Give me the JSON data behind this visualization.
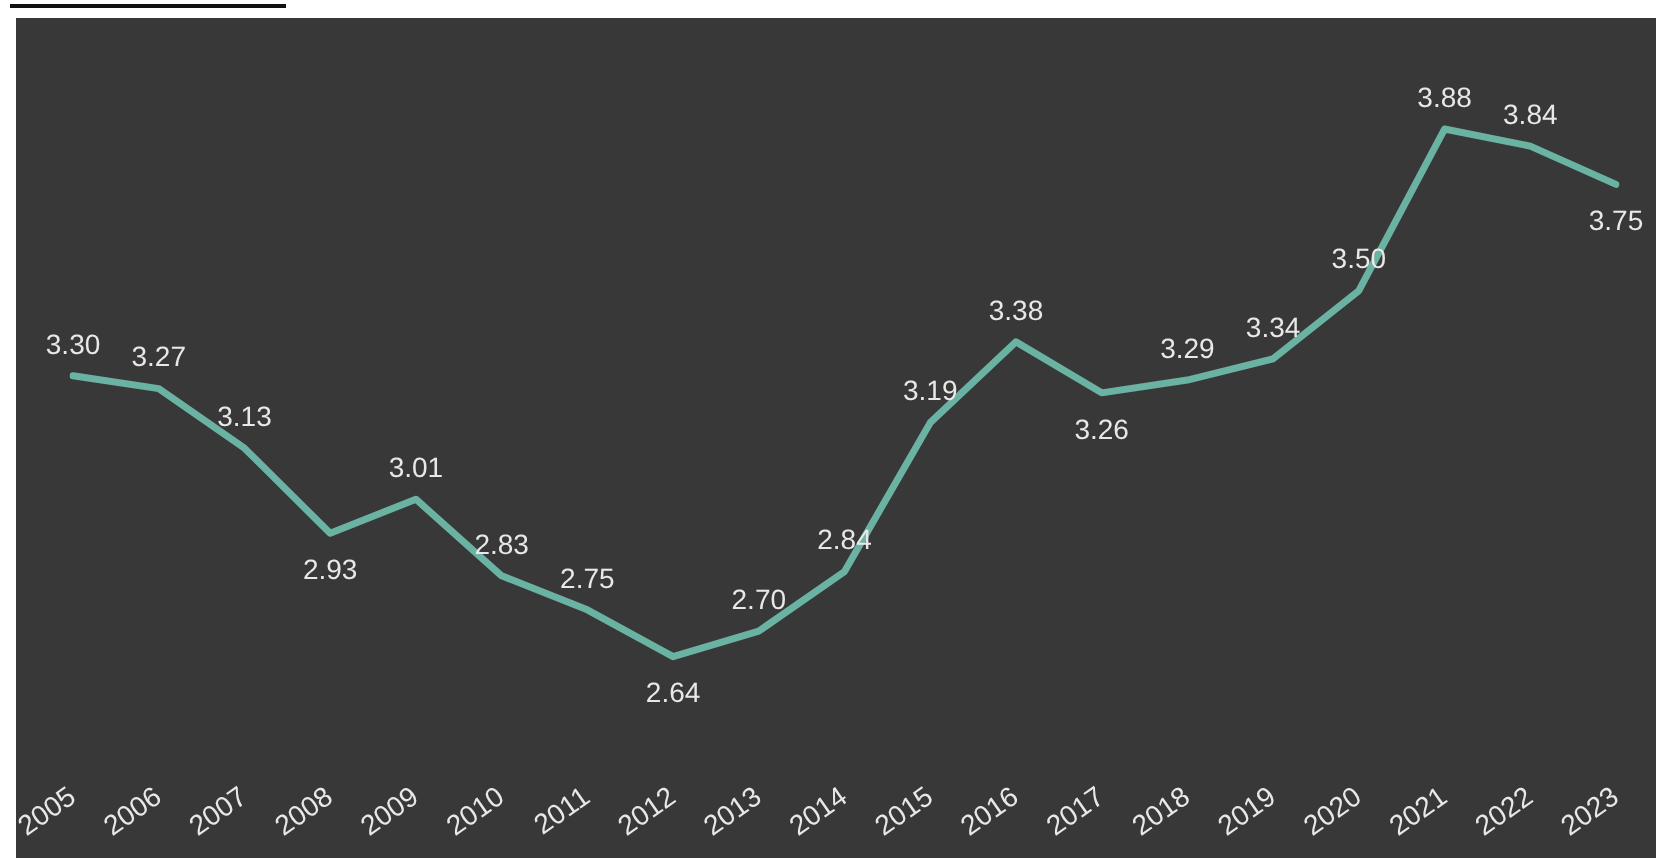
{
  "chart_data": {
    "type": "line",
    "categories": [
      "2005",
      "2006",
      "2007",
      "2008",
      "2009",
      "2010",
      "2011",
      "2012",
      "2013",
      "2014",
      "2015",
      "2016",
      "2017",
      "2018",
      "2019",
      "2020",
      "2021",
      "2022",
      "2023"
    ],
    "series": [
      {
        "color": "#6ab3a3",
        "values": [
          3.3,
          3.27,
          3.13,
          2.93,
          3.01,
          2.83,
          2.75,
          2.64,
          2.7,
          2.84,
          3.19,
          3.38,
          3.26,
          3.29,
          3.34,
          3.5,
          3.88,
          3.84,
          3.75
        ],
        "value_labels": [
          "3.30",
          "3.27",
          "3.13",
          "2.93",
          "3.01",
          "2.83",
          "2.75",
          "2.64",
          "2.70",
          "2.84",
          "3.19",
          "3.38",
          "3.26",
          "3.29",
          "3.34",
          "3.50",
          "3.88",
          "3.84",
          "3.75"
        ]
      }
    ],
    "grid": false,
    "legend": false,
    "marker": "none",
    "line_style": "solid"
  }
}
